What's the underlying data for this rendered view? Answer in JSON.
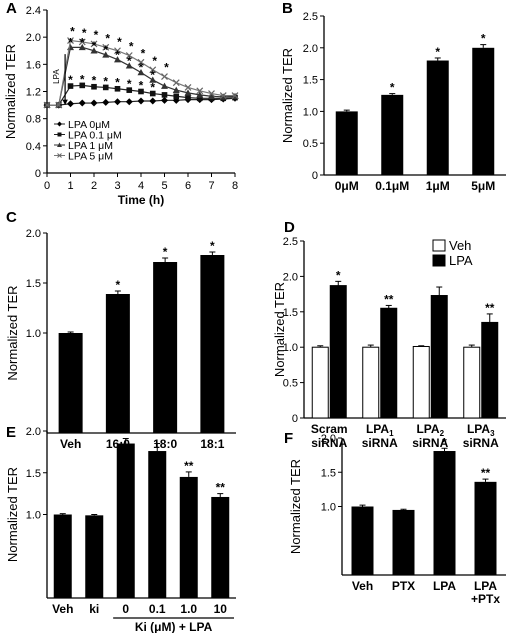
{
  "chart_data": [
    {
      "panel": "A",
      "type": "line",
      "ylabel": "Normalized TER",
      "xlabel": "Time (h)",
      "xlim": [
        0,
        8
      ],
      "ylim": [
        0,
        2.4
      ],
      "xticks": [
        "0",
        "1",
        "2",
        "3",
        "4",
        "5",
        "6",
        "7",
        "8"
      ],
      "yticks": [
        "0",
        "0.4",
        "0.8",
        "1.2",
        "1.6",
        "2.0",
        "2.4"
      ],
      "annotation": "LPA",
      "x": [
        0,
        0.5,
        1,
        1.5,
        2,
        2.5,
        3,
        3.5,
        4,
        4.5,
        5,
        5.5,
        6,
        6.5,
        7,
        7.5,
        8
      ],
      "series": [
        {
          "name": "LPA 0μM",
          "marker": "diamond",
          "values": [
            1.0,
            1.0,
            1.02,
            1.03,
            1.03,
            1.04,
            1.05,
            1.05,
            1.06,
            1.06,
            1.07,
            1.07,
            1.08,
            1.08,
            1.08,
            1.09,
            1.1
          ]
        },
        {
          "name": "LPA 0.1 μM",
          "marker": "square",
          "values": [
            1.0,
            1.0,
            1.28,
            1.29,
            1.27,
            1.26,
            1.24,
            1.22,
            1.2,
            1.17,
            1.15,
            1.13,
            1.11,
            1.1,
            1.1,
            1.1,
            1.11
          ]
        },
        {
          "name": "LPA 1 μM",
          "marker": "triangle",
          "values": [
            1.0,
            1.0,
            1.85,
            1.85,
            1.8,
            1.74,
            1.67,
            1.58,
            1.48,
            1.37,
            1.28,
            1.22,
            1.18,
            1.15,
            1.13,
            1.12,
            1.13
          ]
        },
        {
          "name": "LPA 5 μM",
          "marker": "x",
          "values": [
            1.0,
            1.0,
            1.95,
            1.93,
            1.9,
            1.85,
            1.8,
            1.73,
            1.63,
            1.52,
            1.42,
            1.33,
            1.26,
            1.21,
            1.17,
            1.14,
            1.14
          ]
        }
      ],
      "stars": [
        "*",
        "*",
        "*",
        "*",
        "*",
        "*",
        "*",
        "*",
        "*",
        "*",
        "*",
        "*",
        "*",
        "*",
        "*",
        "*",
        "*",
        "*",
        "*",
        "*",
        "*",
        "*",
        "*",
        "*",
        "*"
      ]
    },
    {
      "panel": "B",
      "type": "bar",
      "ylabel": "Normalized TER",
      "ylim": [
        0,
        2.5
      ],
      "yticks": [
        "0",
        "0.5",
        "1.0",
        "1.5",
        "2.0",
        "2.5"
      ],
      "categories": [
        "0μM",
        "0.1μM",
        "1μM",
        "5μM"
      ],
      "values": [
        1.0,
        1.26,
        1.8,
        2.0
      ],
      "errors": [
        0.02,
        0.02,
        0.04,
        0.05
      ],
      "labels": [
        "",
        "*",
        "*",
        "*"
      ]
    },
    {
      "panel": "C",
      "type": "bar",
      "ylabel": "Normalized TER",
      "ylim": [
        0,
        2.0
      ],
      "yticks": [
        "1.0",
        "1.5",
        "2.0"
      ],
      "categories": [
        "Veh",
        "16:0",
        "18:0",
        "18:1"
      ],
      "values": [
        1.0,
        1.39,
        1.71,
        1.78
      ],
      "errors": [
        0.01,
        0.03,
        0.04,
        0.03
      ],
      "labels": [
        "",
        "*",
        "*",
        "*"
      ]
    },
    {
      "panel": "D",
      "type": "bar",
      "ylabel": "Normalized TER",
      "ylim": [
        0,
        2.5
      ],
      "yticks": [
        "0",
        "0.5",
        "1.0",
        "1.5",
        "2.0",
        "2.5"
      ],
      "categories": [
        "Scram",
        "LPA",
        "LPA",
        "LPA"
      ],
      "category_subscripts": [
        "",
        "1",
        "2",
        "3"
      ],
      "category_line2": [
        "siRNA",
        "siRNA",
        "siRNA",
        "siRNA"
      ],
      "legend": [
        "Veh",
        "LPA"
      ],
      "series": [
        {
          "name": "Veh",
          "color": "#ffffff",
          "values": [
            1.0,
            1.0,
            1.01,
            1.0
          ],
          "errors": [
            0.02,
            0.03,
            0.01,
            0.03
          ]
        },
        {
          "name": "LPA",
          "color": "#000000",
          "values": [
            1.87,
            1.55,
            1.73,
            1.35
          ],
          "errors": [
            0.06,
            0.04,
            0.12,
            0.12
          ]
        }
      ],
      "labels": [
        "*",
        "**",
        "",
        "**"
      ]
    },
    {
      "panel": "E",
      "type": "bar",
      "ylabel": "Normalized TER",
      "ylim": [
        0,
        2.0
      ],
      "yticks": [
        "1.0",
        "1.5",
        "2.0"
      ],
      "categories": [
        "Veh",
        "ki",
        "0",
        "0.1",
        "1.0",
        "10"
      ],
      "group_label": "Ki (μM) + LPA",
      "values": [
        1.0,
        0.99,
        1.85,
        1.76,
        1.45,
        1.21
      ],
      "errors": [
        0.01,
        0.01,
        0.06,
        0.09,
        0.06,
        0.04
      ],
      "labels": [
        "",
        "",
        "*",
        "",
        "**",
        "**"
      ]
    },
    {
      "panel": "F",
      "type": "bar",
      "ylabel": "Normalized TER",
      "ylim": [
        0,
        2.0
      ],
      "yticks": [
        "1.0",
        "1.5",
        "2.0"
      ],
      "categories": [
        "Veh",
        "PTX",
        "LPA",
        "LPA"
      ],
      "category_line2": [
        "",
        "",
        "",
        "+PTx"
      ],
      "values": [
        1.0,
        0.95,
        1.81,
        1.36
      ],
      "errors": [
        0.02,
        0.01,
        0.04,
        0.04
      ],
      "labels": [
        "",
        "",
        "*",
        "**"
      ]
    }
  ]
}
